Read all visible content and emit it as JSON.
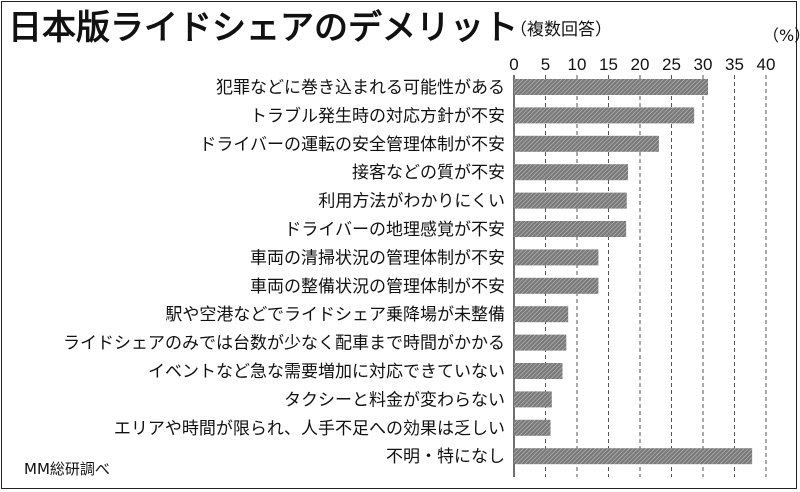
{
  "title": "日本版ライドシェアのデメリット",
  "subtitle": "（複数回答）",
  "unit": "（%）",
  "source": "MM総研調べ",
  "colors": {
    "bar_fill": "#7a7a7a",
    "bar_stripe": "#c8c8c8",
    "grid": "#555555",
    "text": "#111111"
  },
  "chart_data": {
    "type": "bar",
    "orientation": "horizontal",
    "title": "日本版ライドシェアのデメリット",
    "xlabel": "",
    "ylabel": "",
    "xlim": [
      0,
      40
    ],
    "ticks": [
      0,
      5,
      10,
      15,
      20,
      25,
      30,
      35,
      40
    ],
    "grid": true,
    "categories": [
      "犯罪などに巻き込まれる可能性がある",
      "トラブル発生時の対応方針が不安",
      "ドライバーの運転の安全管理体制が不安",
      "接客などの質が不安",
      "利用方法がわかりにくい",
      "ドライバーの地理感覚が不安",
      "車両の清掃状況の管理体制が不安",
      "車両の整備状況の管理体制が不安",
      "駅や空港などでライドシェア乗降場が未整備",
      "ライドシェアのみでは台数が少なく配車まで時間がかかる",
      "イベントなど急な需要増加に対応できていない",
      "タクシーと料金が変わらない",
      "エリアや時間が限られ、人手不足への効果は乏しい",
      "不明・特になし"
    ],
    "values": [
      30.8,
      28.6,
      23.0,
      18.1,
      17.9,
      17.8,
      13.4,
      13.4,
      8.6,
      8.3,
      7.7,
      6.0,
      5.8,
      37.8
    ]
  }
}
